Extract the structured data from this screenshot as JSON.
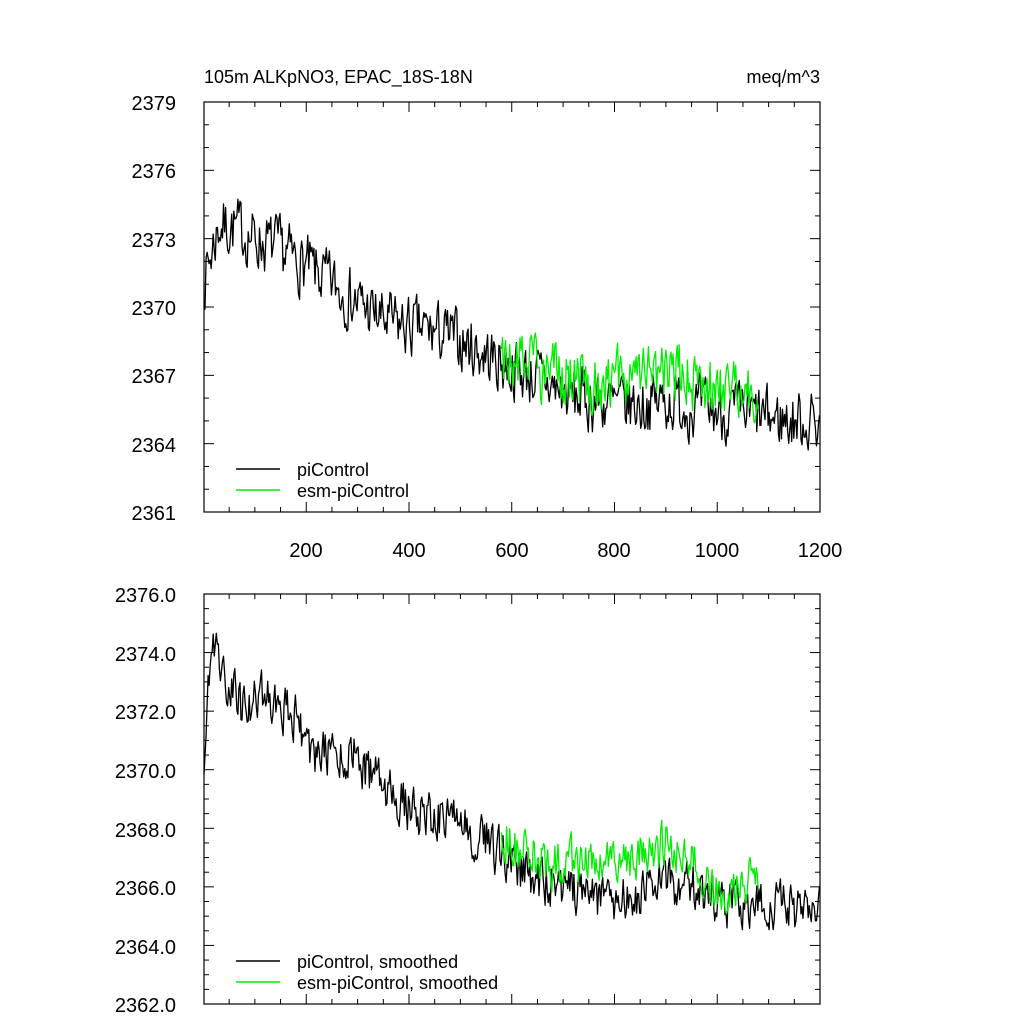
{
  "colors": {
    "picontrol": "#000000",
    "esm_picontrol": "#00ee00",
    "axis": "#000000"
  },
  "chart_data": [
    {
      "type": "line",
      "title_left": "105m ALKpNO3, EPAC_18S-18N",
      "title_right": "meq/m^3",
      "xlim": [
        1,
        1200
      ],
      "ylim": [
        2361,
        2379
      ],
      "xticks": [
        200,
        400,
        600,
        800,
        1000,
        1200
      ],
      "xtick_labels": [
        "200",
        "400",
        "600",
        "800",
        "1000",
        "1200"
      ],
      "yticks": [
        2361,
        2364,
        2367,
        2370,
        2373,
        2376,
        2379
      ],
      "ytick_labels": [
        "2361",
        "2364",
        "2367",
        "2370",
        "2373",
        "2376",
        "2379"
      ],
      "legend": [
        "piControl",
        "esm-piControl"
      ],
      "legend_position": "bottom-left",
      "series": [
        {
          "name": "piControl",
          "color": "#000000",
          "noise": 1.2,
          "x": [
            1,
            30,
            60,
            100,
            150,
            200,
            250,
            300,
            350,
            400,
            450,
            500,
            550,
            600,
            650,
            700,
            750,
            800,
            850,
            900,
            950,
            1000,
            1050,
            1100,
            1150,
            1200
          ],
          "values": [
            2371.2,
            2373.6,
            2373.5,
            2373.0,
            2372.5,
            2371.8,
            2371.0,
            2370.2,
            2369.4,
            2369.1,
            2368.9,
            2368.5,
            2367.9,
            2367.3,
            2366.9,
            2366.2,
            2365.9,
            2365.7,
            2365.7,
            2365.9,
            2365.6,
            2365.4,
            2365.3,
            2365.1,
            2365.0,
            2365.0
          ]
        },
        {
          "name": "esm-piControl",
          "color": "#00ee00",
          "noise": 1.25,
          "x": [
            580,
            620,
            660,
            700,
            750,
            800,
            850,
            900,
            950,
            1000,
            1050,
            1080
          ],
          "values": [
            2367.6,
            2367.4,
            2367.2,
            2366.9,
            2366.8,
            2366.8,
            2366.9,
            2367.1,
            2366.8,
            2366.5,
            2366.5,
            2366.4
          ]
        }
      ]
    },
    {
      "type": "line",
      "xlim": [
        1,
        1200
      ],
      "ylim": [
        2362.0,
        2376.0
      ],
      "xticks": [
        200,
        400,
        600,
        800,
        1000,
        1200
      ],
      "yticks": [
        2362,
        2364,
        2366,
        2368,
        2370,
        2372,
        2374,
        2376
      ],
      "ytick_labels": [
        "2362.0",
        "2364.0",
        "2366.0",
        "2368.0",
        "2370.0",
        "2372.0",
        "2374.0",
        "2376.0"
      ],
      "legend": [
        "piControl, smoothed",
        "esm-piControl, smoothed"
      ],
      "legend_position": "bottom-left",
      "series": [
        {
          "name": "piControl, smoothed",
          "color": "#000000",
          "noise": 0.75,
          "x": [
            1,
            15,
            25,
            40,
            60,
            80,
            100,
            120,
            150,
            180,
            200,
            210,
            250,
            300,
            350,
            400,
            450,
            500,
            550,
            600,
            650,
            700,
            750,
            800,
            850,
            900,
            950,
            1000,
            1050,
            1100,
            1150,
            1200
          ],
          "values": [
            2370.5,
            2373.8,
            2374.6,
            2373.2,
            2372.6,
            2372.0,
            2372.4,
            2372.8,
            2372.2,
            2371.8,
            2371.0,
            2370.4,
            2370.6,
            2370.4,
            2369.3,
            2368.7,
            2368.4,
            2368.2,
            2367.6,
            2366.7,
            2366.2,
            2366.1,
            2365.7,
            2365.5,
            2365.8,
            2366.2,
            2366.0,
            2365.4,
            2365.5,
            2365.5,
            2365.2,
            2365.3
          ]
        },
        {
          "name": "esm-piControl, smoothed",
          "color": "#00ee00",
          "noise": 0.75,
          "x": [
            580,
            620,
            660,
            700,
            750,
            800,
            850,
            900,
            950,
            1000,
            1050,
            1080
          ],
          "values": [
            2367.8,
            2367.2,
            2366.8,
            2366.8,
            2366.9,
            2366.7,
            2367.0,
            2367.4,
            2366.9,
            2366.0,
            2366.2,
            2366.3
          ]
        }
      ]
    }
  ]
}
